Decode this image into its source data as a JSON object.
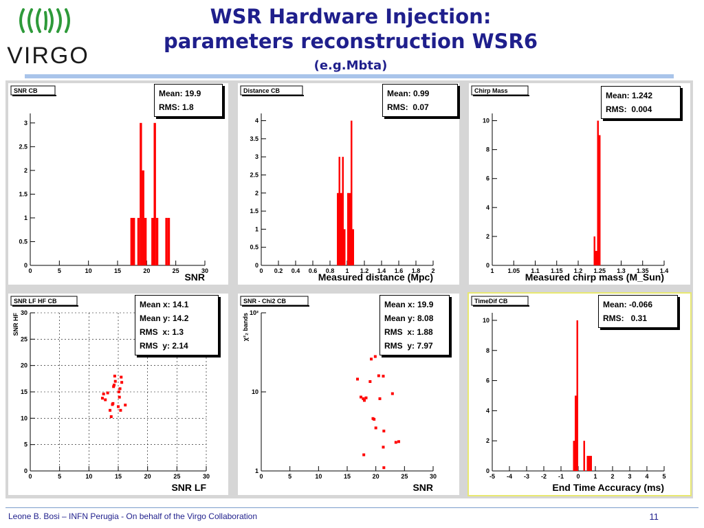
{
  "header": {
    "title_line1": "WSR Hardware Injection:",
    "title_line2": "parameters reconstruction WSR6",
    "subtitle": "(e.g.Mbta)",
    "logo_text": "VIRGO"
  },
  "footer": {
    "text": "Leone B. Bosi – INFN Perugia - On behalf of the Virgo Collaboration",
    "page": "11"
  },
  "colors": {
    "data": "#ff0000",
    "title": "#1f1f8c",
    "highlight_border": "#e8e870"
  },
  "chart_data": [
    {
      "id": "snr-cb",
      "type": "bar",
      "title": "SNR CB",
      "xlabel": "SNR",
      "ylabel": "",
      "xlim": [
        0,
        30
      ],
      "ylim": [
        0,
        3.2
      ],
      "xticks": [
        "0",
        "5",
        "10",
        "15",
        "20",
        "25",
        "30"
      ],
      "yticks": [
        "0",
        "0.5",
        "1",
        "1.5",
        "2",
        "2.5",
        "3"
      ],
      "bins": [
        [
          17.2,
          17.6,
          1
        ],
        [
          17.6,
          18.0,
          1
        ],
        [
          18.4,
          18.8,
          1
        ],
        [
          18.8,
          19.2,
          3
        ],
        [
          19.2,
          19.6,
          2
        ],
        [
          19.6,
          20.0,
          1
        ],
        [
          20.8,
          21.2,
          1
        ],
        [
          21.2,
          21.6,
          3
        ],
        [
          21.6,
          22.0,
          1
        ],
        [
          23.2,
          23.6,
          1
        ],
        [
          23.6,
          24.0,
          1
        ]
      ],
      "stats": [
        "Mean: 19.9",
        "RMS: 1.8"
      ]
    },
    {
      "id": "distance-cb",
      "type": "bar",
      "title": "Distance CB",
      "xlabel": "Measured distance (Mpc)",
      "ylabel": "",
      "xlim": [
        0,
        2
      ],
      "ylim": [
        0,
        4.2
      ],
      "xticks": [
        "0",
        "0.2",
        "0.4",
        "0.6",
        "0.8",
        "1",
        "1.2",
        "1.4",
        "1.6",
        "1.8",
        "2"
      ],
      "yticks": [
        "0",
        "0.5",
        "1",
        "1.5",
        "2",
        "2.5",
        "3",
        "3.5",
        "4"
      ],
      "bins": [
        [
          0.88,
          0.9,
          2
        ],
        [
          0.9,
          0.92,
          3
        ],
        [
          0.92,
          0.94,
          2
        ],
        [
          0.94,
          0.96,
          3
        ],
        [
          0.96,
          0.98,
          1
        ],
        [
          1.0,
          1.02,
          2
        ],
        [
          1.02,
          1.04,
          2
        ],
        [
          1.04,
          1.06,
          4
        ],
        [
          1.06,
          1.08,
          1
        ]
      ],
      "stats": [
        "Mean: 0.99",
        "RMS:  0.07"
      ]
    },
    {
      "id": "chirp-mass",
      "type": "bar",
      "title": "Chirp Mass",
      "xlabel": "Measured chirp mass (M_Sun)",
      "ylabel": "",
      "xlim": [
        1,
        1.4
      ],
      "ylim": [
        0,
        10.5
      ],
      "xticks": [
        "1",
        "1.05",
        "1.1",
        "1.15",
        "1.2",
        "1.25",
        "1.3",
        "1.35",
        "1.4"
      ],
      "yticks": [
        "0",
        "2",
        "4",
        "6",
        "8",
        "10"
      ],
      "bins": [
        [
          1.236,
          1.24,
          2
        ],
        [
          1.24,
          1.244,
          1
        ],
        [
          1.244,
          1.248,
          10
        ],
        [
          1.248,
          1.252,
          9
        ]
      ],
      "stats": [
        "Mean: 1.242",
        "RMS:  0.004"
      ]
    },
    {
      "id": "snr-lf-hf",
      "type": "scatter",
      "title": "SNR LF HF CB",
      "xlabel": "SNR LF",
      "ylabel": "SNR HF",
      "xlim": [
        0,
        30
      ],
      "ylim": [
        0,
        30
      ],
      "xticks": [
        "0",
        "5",
        "10",
        "15",
        "20",
        "25",
        "30"
      ],
      "yticks": [
        "0",
        "5",
        "10",
        "15",
        "20",
        "25",
        "30"
      ],
      "points": [
        [
          12.3,
          13.8
        ],
        [
          12.5,
          14.6
        ],
        [
          12.8,
          13.5
        ],
        [
          13.2,
          14.8
        ],
        [
          13.6,
          11.5
        ],
        [
          13.8,
          10.3
        ],
        [
          14.0,
          12.6
        ],
        [
          14.1,
          12.8
        ],
        [
          14.2,
          16.0
        ],
        [
          14.3,
          16.3
        ],
        [
          14.4,
          18.0
        ],
        [
          14.5,
          17.0
        ],
        [
          15.0,
          12.2
        ],
        [
          15.1,
          15.0
        ],
        [
          15.2,
          14.0
        ],
        [
          15.3,
          15.6
        ],
        [
          15.4,
          11.5
        ],
        [
          15.5,
          17.8
        ],
        [
          15.6,
          16.8
        ],
        [
          16.2,
          12.5
        ]
      ],
      "stats": [
        "Mean x: 14.1",
        "Mean y: 14.2",
        "RMS  x: 1.3",
        "RMS  y: 2.14"
      ]
    },
    {
      "id": "snr-chi2",
      "type": "scatter",
      "title": "SNR - Chi2 CB",
      "xlabel": "SNR",
      "ylabel": "χ²₂ bands",
      "xscale": "linear",
      "yscale": "log",
      "xlim": [
        0,
        30
      ],
      "ylim": [
        1,
        100
      ],
      "xticks": [
        "0",
        "5",
        "10",
        "15",
        "20",
        "25",
        "30"
      ],
      "yticks": [
        "1",
        "10",
        "10²"
      ],
      "points": [
        [
          16.8,
          14.5
        ],
        [
          17.4,
          8.6
        ],
        [
          17.8,
          8.2
        ],
        [
          17.9,
          1.6
        ],
        [
          18.0,
          7.8
        ],
        [
          18.3,
          8.4
        ],
        [
          19.0,
          13.5
        ],
        [
          19.2,
          26.0
        ],
        [
          19.5,
          4.6
        ],
        [
          19.7,
          4.5
        ],
        [
          19.9,
          28.0
        ],
        [
          20.0,
          3.5
        ],
        [
          20.5,
          16.0
        ],
        [
          20.7,
          8.2
        ],
        [
          21.3,
          15.8
        ],
        [
          21.4,
          1.1
        ],
        [
          21.3,
          2.0
        ],
        [
          21.4,
          3.2
        ],
        [
          22.9,
          9.5
        ],
        [
          23.5,
          2.3
        ],
        [
          24.0,
          2.35
        ]
      ],
      "stats": [
        "Mean x: 19.9",
        "Mean y: 8.08",
        "RMS  x: 1.88",
        "RMS  y: 7.97"
      ]
    },
    {
      "id": "timedif-cb",
      "type": "bar",
      "title": "TimeDif CB",
      "xlabel": "End Time Accuracy (ms)",
      "ylabel": "",
      "xlim": [
        -5,
        5
      ],
      "ylim": [
        0,
        10.5
      ],
      "xticks": [
        "-5",
        "-4",
        "-3",
        "-2",
        "-1",
        "0",
        "1",
        "2",
        "3",
        "4",
        "5"
      ],
      "yticks": [
        "0",
        "2",
        "4",
        "6",
        "8",
        "10"
      ],
      "bins": [
        [
          -0.3,
          -0.2,
          2
        ],
        [
          -0.2,
          -0.1,
          5
        ],
        [
          -0.1,
          0.0,
          10
        ],
        [
          0.3,
          0.4,
          2
        ],
        [
          0.5,
          0.6,
          1
        ],
        [
          0.6,
          0.7,
          1
        ],
        [
          0.7,
          0.8,
          1
        ]
      ],
      "stats": [
        "Mean: -0.066",
        "RMS:   0.31"
      ]
    }
  ]
}
